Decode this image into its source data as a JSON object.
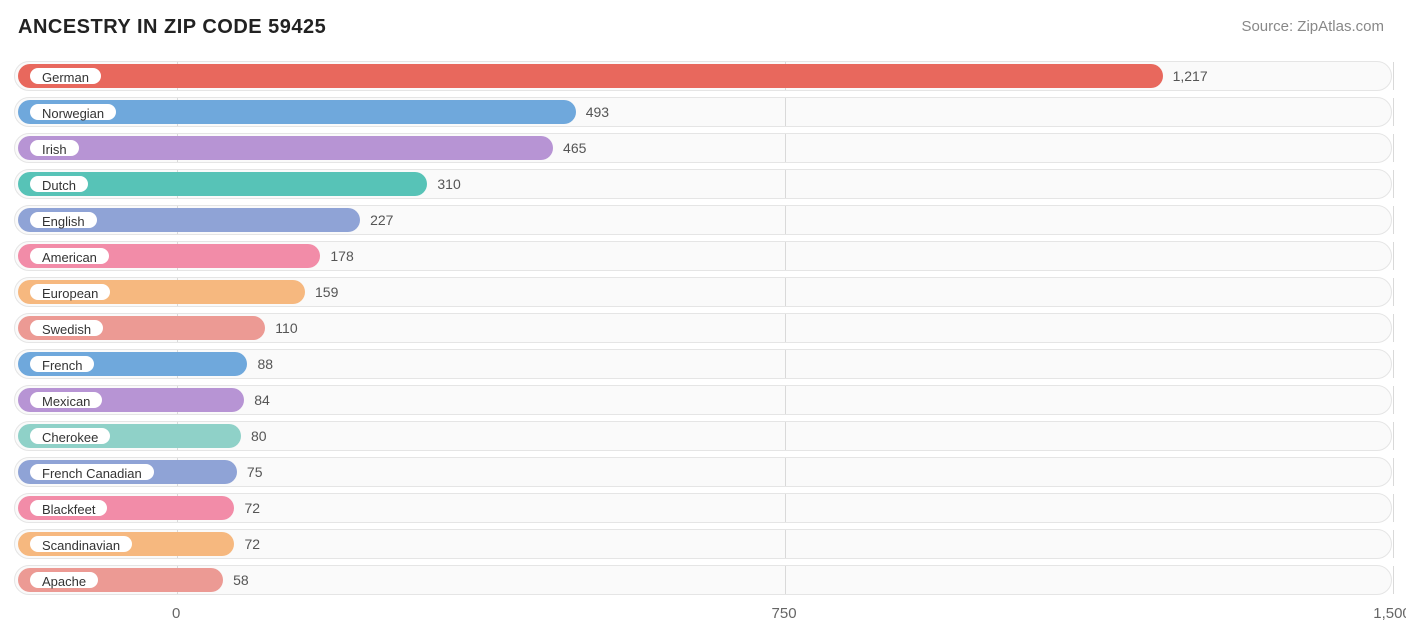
{
  "title": "ANCESTRY IN ZIP CODE 59425",
  "source": "Source: ZipAtlas.com",
  "chart": {
    "type": "bar-horizontal",
    "x_min": -200,
    "x_max": 1500,
    "x_ticks": [
      0,
      750,
      1500
    ],
    "x_tick_labels": [
      "0",
      "750",
      "1,500"
    ],
    "track_border": "#e5e5e5",
    "track_bg": "#fafafa",
    "gridline_color": "#d9d9d9",
    "label_fontsize": 13,
    "value_fontsize": 14,
    "series": [
      {
        "label": "German",
        "value": 1217,
        "display": "1,217",
        "color": "#e8685d"
      },
      {
        "label": "Norwegian",
        "value": 493,
        "display": "493",
        "color": "#6fa8dc"
      },
      {
        "label": "Irish",
        "value": 465,
        "display": "465",
        "color": "#b794d4"
      },
      {
        "label": "Dutch",
        "value": 310,
        "display": "310",
        "color": "#57c3b7"
      },
      {
        "label": "English",
        "value": 227,
        "display": "227",
        "color": "#8fa3d6"
      },
      {
        "label": "American",
        "value": 178,
        "display": "178",
        "color": "#f28ca8"
      },
      {
        "label": "European",
        "value": 159,
        "display": "159",
        "color": "#f6b87f"
      },
      {
        "label": "Swedish",
        "value": 110,
        "display": "110",
        "color": "#ec9a94"
      },
      {
        "label": "French",
        "value": 88,
        "display": "88",
        "color": "#6fa8dc"
      },
      {
        "label": "Mexican",
        "value": 84,
        "display": "84",
        "color": "#b794d4"
      },
      {
        "label": "Cherokee",
        "value": 80,
        "display": "80",
        "color": "#8fd1c8"
      },
      {
        "label": "French Canadian",
        "value": 75,
        "display": "75",
        "color": "#8fa3d6"
      },
      {
        "label": "Blackfeet",
        "value": 72,
        "display": "72",
        "color": "#f28ca8"
      },
      {
        "label": "Scandinavian",
        "value": 72,
        "display": "72",
        "color": "#f6b87f"
      },
      {
        "label": "Apache",
        "value": 58,
        "display": "58",
        "color": "#ec9a94"
      }
    ]
  }
}
